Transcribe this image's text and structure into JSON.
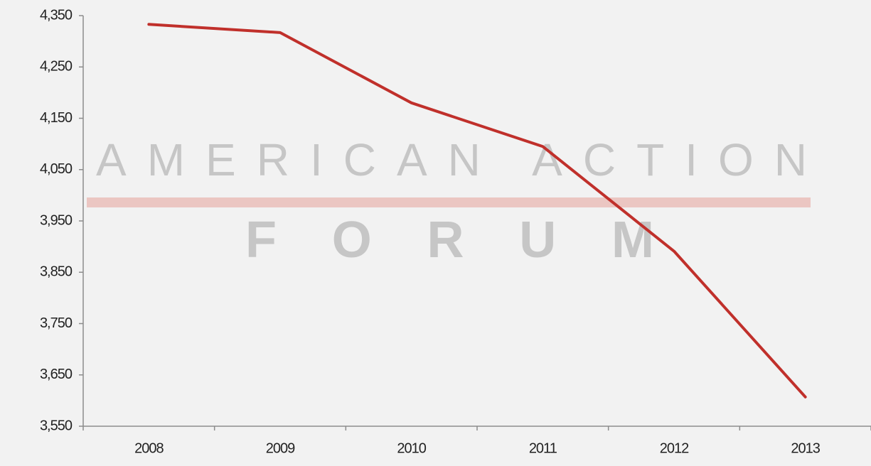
{
  "chart_data": {
    "type": "line",
    "categories": [
      "2008",
      "2009",
      "2010",
      "2011",
      "2012",
      "2013"
    ],
    "series": [
      {
        "color": "#c0302b",
        "values": [
          4333,
          4317,
          4180,
          4095,
          3891,
          3607
        ]
      }
    ],
    "ylim": [
      3550,
      4350
    ],
    "yticks": [
      {
        "value": 3550,
        "label": "3,550"
      },
      {
        "value": 3650,
        "label": "3,650"
      },
      {
        "value": 3750,
        "label": "3,750"
      },
      {
        "value": 3850,
        "label": "3,850"
      },
      {
        "value": 3950,
        "label": "3,950"
      },
      {
        "value": 4050,
        "label": "4,050"
      },
      {
        "value": 4150,
        "label": "4,150"
      },
      {
        "value": 4250,
        "label": "4,250"
      },
      {
        "value": 4350,
        "label": "4,350"
      }
    ],
    "grid": false,
    "watermark": [
      "AMERICAN ACTION",
      "FORUM"
    ]
  }
}
